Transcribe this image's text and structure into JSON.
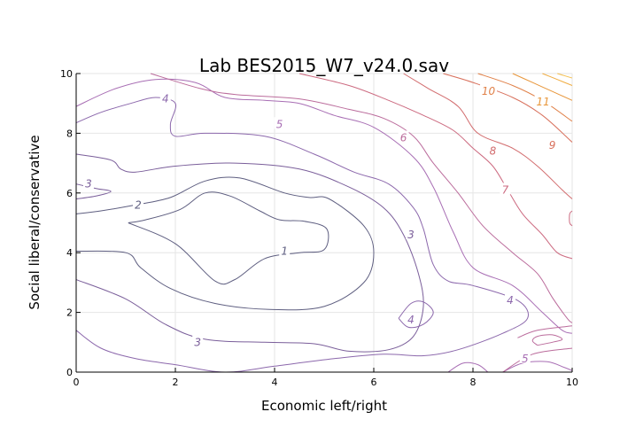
{
  "chart_data": {
    "type": "contour",
    "title": "Lab BES2015_W7_v24.0.sav",
    "xlabel": "Economic left/right",
    "ylabel": "Social liberal/conservative",
    "xlim": [
      0,
      10
    ],
    "ylim": [
      0,
      10
    ],
    "xticks": [
      0,
      2,
      4,
      6,
      8,
      10
    ],
    "yticks": [
      0,
      2,
      4,
      6,
      8,
      10
    ],
    "grid": true,
    "colormap": [
      "#5a5a7a",
      "#8a6aa8",
      "#b070b0",
      "#c86a8e",
      "#d8706a",
      "#e28a3e",
      "#f0b040"
    ],
    "levels": [
      {
        "value": 1,
        "color": "#5e5e80",
        "points": [
          [
            1.05,
            5.0
          ],
          [
            2.0,
            4.3
          ],
          [
            2.8,
            3.05
          ],
          [
            3.2,
            3.1
          ],
          [
            3.8,
            3.8
          ],
          [
            4.5,
            4.0
          ],
          [
            5.0,
            4.1
          ],
          [
            5.05,
            4.8
          ],
          [
            4.6,
            5.05
          ],
          [
            4.1,
            5.1
          ],
          [
            3.7,
            5.4
          ],
          [
            3.1,
            5.9
          ],
          [
            2.6,
            6.0
          ],
          [
            2.1,
            5.45
          ],
          [
            1.4,
            5.1
          ],
          [
            1.05,
            5.0
          ]
        ],
        "labels": [
          {
            "text": "1",
            "x": 4.2,
            "y": 4.05
          }
        ]
      },
      {
        "value": 2,
        "color": "#5e5e80",
        "points": [
          [
            0,
            4.05
          ],
          [
            1.0,
            4.0
          ],
          [
            1.3,
            3.5
          ],
          [
            1.9,
            2.8
          ],
          [
            2.8,
            2.3
          ],
          [
            3.9,
            2.1
          ],
          [
            5.0,
            2.2
          ],
          [
            5.8,
            3.0
          ],
          [
            6.0,
            4.0
          ],
          [
            5.8,
            4.9
          ],
          [
            5.1,
            5.8
          ],
          [
            4.7,
            5.85
          ],
          [
            4.2,
            6.0
          ],
          [
            3.3,
            6.5
          ],
          [
            2.6,
            6.4
          ],
          [
            1.9,
            5.85
          ],
          [
            1.2,
            5.6
          ],
          [
            0.5,
            5.4
          ],
          [
            0,
            5.3
          ]
        ],
        "labels": [
          {
            "text": "2",
            "x": 1.25,
            "y": 5.6
          }
        ]
      },
      {
        "value": 3,
        "color": "#7a5e9a",
        "points": [
          [
            0,
            3.1
          ],
          [
            1.0,
            2.45
          ],
          [
            1.8,
            1.6
          ],
          [
            2.6,
            1.1
          ],
          [
            3.8,
            1.0
          ],
          [
            4.8,
            0.95
          ],
          [
            5.5,
            0.7
          ],
          [
            6.3,
            0.75
          ],
          [
            6.8,
            1.2
          ],
          [
            7.0,
            2.2
          ],
          [
            6.9,
            3.3
          ],
          [
            6.6,
            4.6
          ],
          [
            6.2,
            5.5
          ],
          [
            5.5,
            6.2
          ],
          [
            4.5,
            6.8
          ],
          [
            3.2,
            7.0
          ],
          [
            2.0,
            6.9
          ],
          [
            1.2,
            6.7
          ],
          [
            0.9,
            6.8
          ],
          [
            0.7,
            7.1
          ],
          [
            0,
            7.3
          ]
        ],
        "labels": [
          {
            "text": "3",
            "x": 2.45,
            "y": 1.0
          },
          {
            "text": "3",
            "x": 6.75,
            "y": 4.6
          }
        ]
      },
      {
        "value": 3,
        "color": "#7a5e9a",
        "points": [
          [
            0,
            6.3
          ],
          [
            0.4,
            6.15
          ],
          [
            0.7,
            6.05
          ],
          [
            0.4,
            5.9
          ],
          [
            0,
            5.8
          ]
        ],
        "labels": [
          {
            "text": "3",
            "x": 0.25,
            "y": 6.3
          }
        ]
      },
      {
        "value": 4,
        "color": "#8c68ac",
        "points": [
          [
            6.5,
            1.8
          ],
          [
            6.75,
            2.3
          ],
          [
            7.0,
            2.35
          ],
          [
            7.2,
            2.0
          ],
          [
            7.0,
            1.6
          ],
          [
            6.7,
            1.5
          ],
          [
            6.5,
            1.8
          ]
        ],
        "labels": [
          {
            "text": "4",
            "x": 6.75,
            "y": 1.75
          }
        ]
      },
      {
        "value": 4,
        "color": "#8c68ac",
        "points": [
          [
            0,
            1.4
          ],
          [
            0.5,
            0.8
          ],
          [
            1.2,
            0.45
          ],
          [
            2.0,
            0.25
          ],
          [
            3.0,
            0.0
          ],
          [
            4.0,
            0.2
          ],
          [
            5.2,
            0.45
          ],
          [
            6.2,
            0.6
          ],
          [
            7.0,
            0.55
          ],
          [
            7.7,
            0.75
          ],
          [
            8.6,
            1.3
          ],
          [
            9.1,
            1.8
          ],
          [
            8.9,
            2.4
          ],
          [
            8.0,
            2.9
          ],
          [
            7.5,
            3.05
          ],
          [
            7.2,
            3.6
          ],
          [
            7.0,
            4.8
          ],
          [
            6.8,
            5.5
          ],
          [
            6.3,
            6.3
          ],
          [
            5.6,
            6.7
          ],
          [
            4.8,
            7.3
          ],
          [
            3.8,
            7.9
          ],
          [
            2.6,
            8.0
          ],
          [
            2.0,
            7.9
          ],
          [
            1.9,
            8.3
          ],
          [
            2.0,
            9.0
          ],
          [
            1.6,
            9.2
          ],
          [
            1.1,
            9.0
          ],
          [
            0.5,
            8.7
          ],
          [
            0,
            8.35
          ]
        ],
        "labels": [
          {
            "text": "4",
            "x": 1.8,
            "y": 9.15
          },
          {
            "text": "4",
            "x": 8.75,
            "y": 2.4
          }
        ]
      },
      {
        "value": 5,
        "color": "#a86eb4",
        "points": [
          [
            0,
            8.9
          ],
          [
            0.8,
            9.5
          ],
          [
            1.6,
            9.8
          ],
          [
            2.4,
            9.7
          ],
          [
            3.0,
            9.2
          ],
          [
            3.8,
            9.1
          ],
          [
            4.5,
            9.0
          ],
          [
            5.2,
            8.6
          ],
          [
            6.0,
            8.2
          ],
          [
            6.8,
            7.2
          ],
          [
            7.2,
            6.2
          ],
          [
            7.6,
            4.7
          ],
          [
            8.0,
            3.5
          ],
          [
            8.8,
            2.9
          ],
          [
            9.4,
            2.0
          ],
          [
            9.8,
            1.4
          ],
          [
            10,
            1.3
          ]
        ],
        "labels": [
          {
            "text": "5",
            "x": 4.1,
            "y": 8.3
          }
        ]
      },
      {
        "value": 5,
        "color": "#a86eb4",
        "points": [
          [
            8.6,
            0.0
          ],
          [
            9.0,
            0.3
          ],
          [
            9.5,
            0.35
          ],
          [
            9.85,
            0.15
          ],
          [
            10,
            0.05
          ]
        ],
        "labels": [
          {
            "text": "5",
            "x": 9.05,
            "y": 0.45
          }
        ]
      },
      {
        "value": 5,
        "color": "#a86eb4",
        "points": [
          [
            7.5,
            0.0
          ],
          [
            7.8,
            0.3
          ],
          [
            8.1,
            0.25
          ],
          [
            8.3,
            0.0
          ]
        ],
        "labels": []
      },
      {
        "value": 6,
        "color": "#bb6c9c",
        "points": [
          [
            1.5,
            10.0
          ],
          [
            2.5,
            9.5
          ],
          [
            3.2,
            9.3
          ],
          [
            4.5,
            9.15
          ],
          [
            5.5,
            8.8
          ],
          [
            6.2,
            8.5
          ],
          [
            6.8,
            7.9
          ],
          [
            7.2,
            7.0
          ],
          [
            7.7,
            6.0
          ],
          [
            8.2,
            4.9
          ],
          [
            8.8,
            4.0
          ],
          [
            9.3,
            3.3
          ],
          [
            9.6,
            2.5
          ],
          [
            9.9,
            1.8
          ],
          [
            10,
            1.65
          ]
        ],
        "labels": [
          {
            "text": "6",
            "x": 6.6,
            "y": 7.85
          }
        ]
      },
      {
        "value": 6,
        "color": "#bb6c9c",
        "points": [
          [
            9.3,
            0.9
          ],
          [
            9.6,
            1.0
          ],
          [
            9.8,
            1.1
          ],
          [
            9.6,
            1.25
          ],
          [
            9.3,
            1.2
          ],
          [
            9.2,
            1.05
          ],
          [
            9.3,
            0.9
          ]
        ],
        "labels": []
      },
      {
        "value": 6,
        "color": "#bb6c9c",
        "points": [
          [
            8.9,
            1.15
          ],
          [
            9.3,
            1.4
          ],
          [
            10,
            1.55
          ]
        ],
        "labels": []
      },
      {
        "value": 6,
        "color": "#bb6c9c",
        "points": [
          [
            8.6,
            0.0
          ],
          [
            9.2,
            0.6
          ],
          [
            10,
            0.8
          ]
        ],
        "labels": []
      },
      {
        "value": 7,
        "color": "#cc6a80",
        "points": [
          [
            4.5,
            10.0
          ],
          [
            5.5,
            9.6
          ],
          [
            6.3,
            9.1
          ],
          [
            7.0,
            8.6
          ],
          [
            7.6,
            8.1
          ],
          [
            8.0,
            7.5
          ],
          [
            8.4,
            6.9
          ],
          [
            8.7,
            6.1
          ],
          [
            9.0,
            5.3
          ],
          [
            9.4,
            4.6
          ],
          [
            9.7,
            4.0
          ],
          [
            10,
            3.8
          ]
        ],
        "labels": [
          {
            "text": "7",
            "x": 8.65,
            "y": 6.1
          }
        ]
      },
      {
        "value": 7,
        "color": "#cc6a80",
        "points": [
          [
            10,
            5.4
          ],
          [
            9.95,
            5.3
          ],
          [
            9.95,
            5.0
          ],
          [
            10,
            4.9
          ]
        ],
        "labels": []
      },
      {
        "value": 8,
        "color": "#d26c6e",
        "points": [
          [
            6.6,
            10.0
          ],
          [
            7.1,
            9.5
          ],
          [
            7.7,
            8.9
          ],
          [
            8.1,
            8.0
          ],
          [
            8.8,
            7.5
          ],
          [
            9.3,
            6.9
          ],
          [
            9.8,
            6.1
          ],
          [
            10,
            5.8
          ]
        ],
        "labels": [
          {
            "text": "8",
            "x": 8.4,
            "y": 7.4
          }
        ]
      },
      {
        "value": 9,
        "color": "#d8705c",
        "points": [
          [
            7.4,
            10.0
          ],
          [
            8.0,
            9.7
          ],
          [
            8.8,
            9.2
          ],
          [
            9.4,
            8.6
          ],
          [
            10,
            7.7
          ]
        ],
        "labels": [
          {
            "text": "9",
            "x": 9.6,
            "y": 7.6
          }
        ]
      },
      {
        "value": 10,
        "color": "#e08048",
        "points": [
          [
            8.1,
            10.0
          ],
          [
            8.8,
            9.6
          ],
          [
            9.4,
            9.1
          ],
          [
            10,
            8.4
          ]
        ],
        "labels": [
          {
            "text": "10",
            "x": 8.25,
            "y": 9.4
          }
        ]
      },
      {
        "value": 11,
        "color": "#e8963a",
        "points": [
          [
            8.8,
            10.0
          ],
          [
            9.2,
            9.7
          ],
          [
            9.6,
            9.4
          ],
          [
            10,
            9.1
          ]
        ],
        "labels": [
          {
            "text": "11",
            "x": 9.35,
            "y": 9.05
          }
        ]
      },
      {
        "value": 12,
        "color": "#f0ac40",
        "points": [
          [
            9.4,
            10.0
          ],
          [
            9.7,
            9.8
          ],
          [
            10,
            9.6
          ]
        ],
        "labels": []
      },
      {
        "value": 13,
        "color": "#f4c050",
        "points": [
          [
            9.7,
            10.0
          ],
          [
            10,
            9.85
          ]
        ],
        "labels": []
      }
    ]
  }
}
